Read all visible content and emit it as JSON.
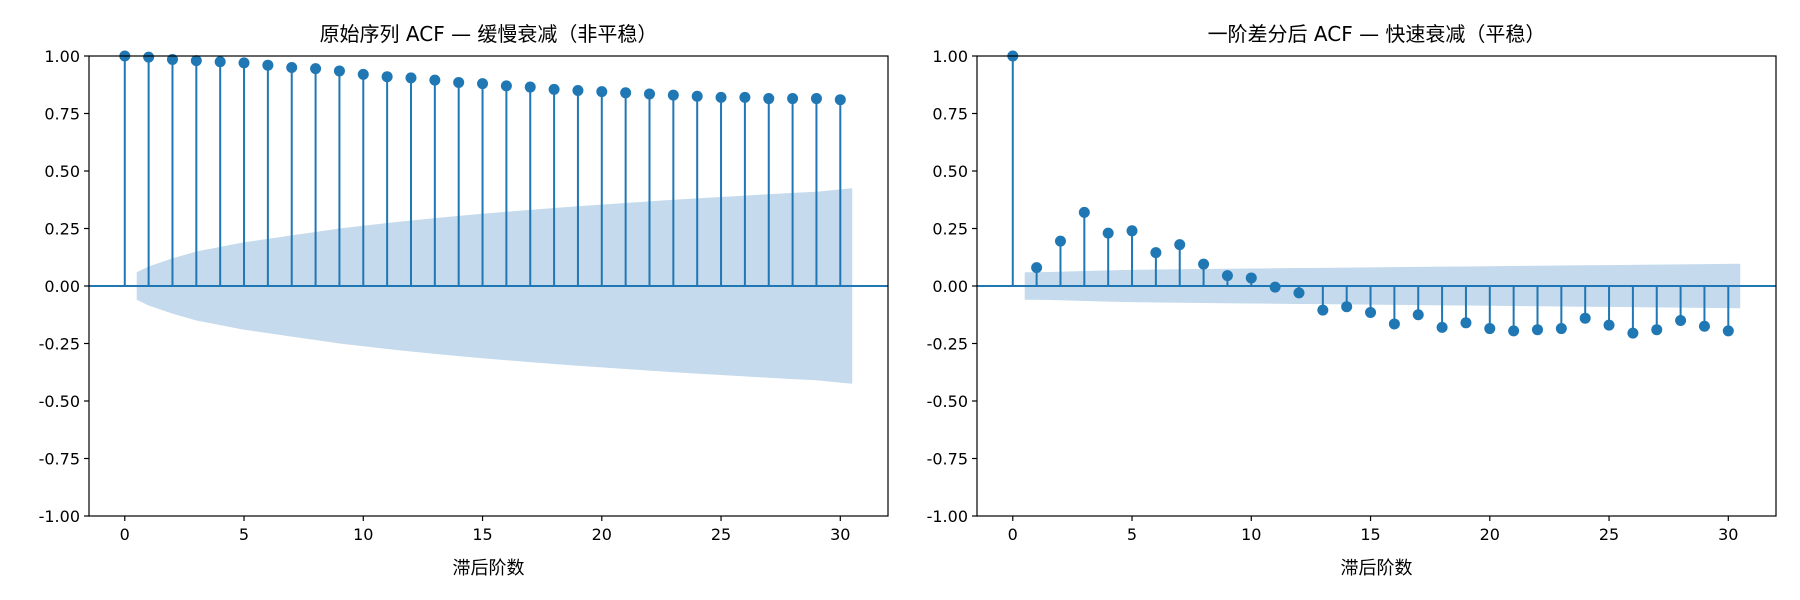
{
  "chart_data": [
    {
      "type": "stem",
      "title": "原始序列 ACF — 缓慢衰减（非平稳）",
      "xlabel": "滞后阶数",
      "ylabel": "",
      "xlim": [
        -1.5,
        32.0
      ],
      "ylim": [
        -1.0,
        1.0
      ],
      "xticks": [
        0,
        5,
        10,
        15,
        20,
        25,
        30
      ],
      "yticks": [
        -1.0,
        -0.75,
        -0.5,
        -0.25,
        0.0,
        0.25,
        0.5,
        0.75,
        1.0
      ],
      "ytick_labels": [
        "-1.00",
        "-0.75",
        "-0.50",
        "-0.25",
        "0.00",
        "0.25",
        "0.50",
        "0.75",
        "1.00"
      ],
      "grid": false,
      "lags": [
        0,
        1,
        2,
        3,
        4,
        5,
        6,
        7,
        8,
        9,
        10,
        11,
        12,
        13,
        14,
        15,
        16,
        17,
        18,
        19,
        20,
        21,
        22,
        23,
        24,
        25,
        26,
        27,
        28,
        29,
        30
      ],
      "values": [
        1.0,
        0.995,
        0.985,
        0.98,
        0.975,
        0.97,
        0.96,
        0.95,
        0.945,
        0.935,
        0.92,
        0.91,
        0.905,
        0.895,
        0.885,
        0.88,
        0.87,
        0.865,
        0.855,
        0.85,
        0.845,
        0.84,
        0.835,
        0.83,
        0.825,
        0.82,
        0.82,
        0.815,
        0.815,
        0.815,
        0.81
      ],
      "confidence_band": {
        "lags": [
          0.5,
          1,
          2,
          3,
          4,
          5,
          6,
          7,
          8,
          9,
          10,
          11,
          12,
          13,
          14,
          15,
          16,
          17,
          18,
          19,
          20,
          21,
          22,
          23,
          24,
          25,
          26,
          27,
          28,
          29,
          30,
          30.5
        ],
        "upper": [
          0.06,
          0.085,
          0.12,
          0.15,
          0.17,
          0.19,
          0.205,
          0.22,
          0.235,
          0.25,
          0.262,
          0.274,
          0.285,
          0.295,
          0.305,
          0.314,
          0.323,
          0.331,
          0.339,
          0.347,
          0.354,
          0.361,
          0.368,
          0.375,
          0.381,
          0.387,
          0.393,
          0.399,
          0.405,
          0.41,
          0.42,
          0.425
        ]
      },
      "colors": {
        "stem": "#1f77b4",
        "band": "#c5daec",
        "zero_line": "#1f77b4"
      }
    },
    {
      "type": "stem",
      "title": "一阶差分后 ACF — 快速衰减（平稳）",
      "xlabel": "滞后阶数",
      "ylabel": "",
      "xlim": [
        -1.5,
        32.0
      ],
      "ylim": [
        -1.0,
        1.0
      ],
      "xticks": [
        0,
        5,
        10,
        15,
        20,
        25,
        30
      ],
      "yticks": [
        -1.0,
        -0.75,
        -0.5,
        -0.25,
        0.0,
        0.25,
        0.5,
        0.75,
        1.0
      ],
      "ytick_labels": [
        "-1.00",
        "-0.75",
        "-0.50",
        "-0.25",
        "0.00",
        "0.25",
        "0.50",
        "0.75",
        "1.00"
      ],
      "grid": false,
      "lags": [
        0,
        1,
        2,
        3,
        4,
        5,
        6,
        7,
        8,
        9,
        10,
        11,
        12,
        13,
        14,
        15,
        16,
        17,
        18,
        19,
        20,
        21,
        22,
        23,
        24,
        25,
        26,
        27,
        28,
        29,
        30
      ],
      "values": [
        1.0,
        0.08,
        0.195,
        0.32,
        0.23,
        0.24,
        0.145,
        0.18,
        0.095,
        0.045,
        0.035,
        -0.005,
        -0.03,
        -0.105,
        -0.09,
        -0.115,
        -0.165,
        -0.125,
        -0.18,
        -0.16,
        -0.185,
        -0.195,
        -0.19,
        -0.185,
        -0.14,
        -0.17,
        -0.205,
        -0.19,
        -0.15,
        -0.175,
        -0.195
      ],
      "confidence_band": {
        "lags": [
          0.5,
          1,
          2,
          3,
          4,
          5,
          6,
          7,
          8,
          9,
          10,
          11,
          12,
          13,
          14,
          15,
          16,
          17,
          18,
          19,
          20,
          21,
          22,
          23,
          24,
          25,
          26,
          27,
          28,
          29,
          30,
          30.5
        ],
        "upper": [
          0.06,
          0.06,
          0.062,
          0.065,
          0.068,
          0.07,
          0.072,
          0.073,
          0.074,
          0.075,
          0.076,
          0.077,
          0.078,
          0.079,
          0.08,
          0.081,
          0.082,
          0.083,
          0.084,
          0.085,
          0.086,
          0.087,
          0.088,
          0.089,
          0.09,
          0.091,
          0.092,
          0.093,
          0.094,
          0.095,
          0.096,
          0.097
        ]
      },
      "colors": {
        "stem": "#1f77b4",
        "band": "#c5daec",
        "zero_line": "#1f77b4"
      }
    }
  ]
}
